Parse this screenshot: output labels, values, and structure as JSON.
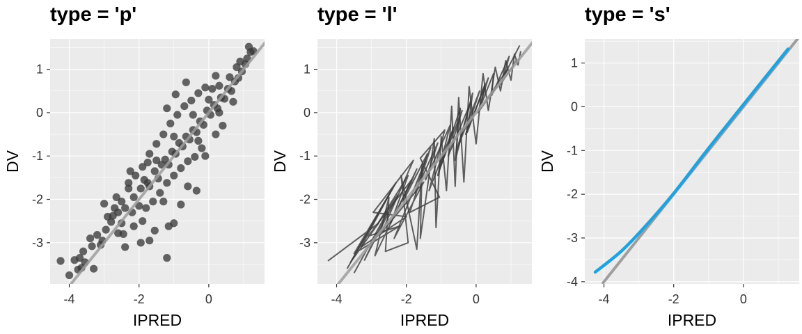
{
  "colors": {
    "panel_bg": "#EBEBEB",
    "grid": "#FFFFFF",
    "points": "#3A3A3A",
    "identity_line": "#9E9E9E",
    "smooth_line": "#1FA3E0",
    "tick_marks": "#333333"
  },
  "chart_data": [
    {
      "type": "scatter",
      "title": "type = 'p'",
      "xlabel": "IPRED",
      "ylabel": "DV",
      "xlim": [
        -4.55,
        1.6
      ],
      "ylim": [
        -3.95,
        1.7
      ],
      "x_ticks": [
        -4,
        -2,
        0
      ],
      "x_tick_labels": [
        "-4",
        "-2",
        "0"
      ],
      "y_ticks": [
        -3,
        -2,
        -1,
        0,
        1
      ],
      "y_tick_labels": [
        "-3",
        "-2",
        "-1",
        "0",
        "1"
      ],
      "grid": true,
      "identity_line": true,
      "series": [
        {
          "points": [
            [
              -4.25,
              -3.42
            ],
            [
              -3.65,
              -3.58
            ],
            [
              -3.55,
              -3.45
            ],
            [
              -3.7,
              -3.35
            ],
            [
              -3.6,
              -3.2
            ],
            [
              -3.35,
              -3.08
            ],
            [
              -3.4,
              -2.9
            ],
            [
              -3.2,
              -2.82
            ],
            [
              -3.05,
              -2.95
            ],
            [
              -2.95,
              -2.7
            ],
            [
              -2.8,
              -2.52
            ],
            [
              -2.75,
              -2.38
            ],
            [
              -2.6,
              -2.3
            ],
            [
              -2.5,
              -2.55
            ],
            [
              -2.5,
              -2.05
            ],
            [
              -2.4,
              -2.2
            ],
            [
              -2.3,
              -1.62
            ],
            [
              -2.15,
              -1.95
            ],
            [
              -1.95,
              -1.75
            ],
            [
              -2.0,
              -2.15
            ],
            [
              -1.85,
              -1.55
            ],
            [
              -1.75,
              -1.62
            ],
            [
              -1.7,
              -1.7
            ],
            [
              -1.55,
              -1.35
            ],
            [
              -1.45,
              -1.52
            ],
            [
              -1.35,
              -1.2
            ],
            [
              -1.25,
              -1.08
            ],
            [
              -1.15,
              -1.2
            ],
            [
              -1.05,
              -0.9
            ],
            [
              -0.95,
              -0.95
            ],
            [
              -0.85,
              -0.7
            ],
            [
              -0.75,
              -0.78
            ],
            [
              -0.65,
              -0.55
            ],
            [
              -0.55,
              -0.62
            ],
            [
              -0.45,
              -0.4
            ],
            [
              -0.35,
              -0.45
            ],
            [
              -0.25,
              -0.2
            ],
            [
              -0.15,
              -0.28
            ],
            [
              -0.05,
              0.05
            ],
            [
              0.05,
              -0.05
            ],
            [
              0.15,
              0.18
            ],
            [
              0.25,
              0.1
            ],
            [
              0.35,
              0.35
            ],
            [
              0.45,
              0.32
            ],
            [
              0.55,
              0.55
            ],
            [
              0.65,
              0.5
            ],
            [
              0.75,
              0.72
            ],
            [
              0.85,
              0.8
            ],
            [
              0.95,
              0.95
            ],
            [
              1.05,
              1.12
            ],
            [
              1.1,
              1.25
            ],
            [
              1.2,
              1.4
            ],
            [
              1.15,
              1.52
            ],
            [
              1.28,
              1.42
            ],
            [
              0.9,
              1.18
            ],
            [
              0.8,
              1.05
            ],
            [
              0.6,
              0.82
            ],
            [
              0.3,
              0.62
            ],
            [
              0.1,
              0.55
            ],
            [
              -0.1,
              0.58
            ],
            [
              -0.3,
              0.45
            ],
            [
              -0.5,
              0.28
            ],
            [
              -0.7,
              0.15
            ],
            [
              -0.9,
              -0.05
            ],
            [
              -1.1,
              -0.25
            ],
            [
              -1.3,
              -0.5
            ],
            [
              -1.5,
              -0.72
            ],
            [
              -1.7,
              -0.95
            ],
            [
              -1.9,
              -1.25
            ],
            [
              -2.1,
              -1.45
            ],
            [
              -2.3,
              -1.75
            ],
            [
              -0.4,
              -1.02
            ],
            [
              -0.2,
              -0.82
            ],
            [
              0.2,
              -0.5
            ],
            [
              0.4,
              -0.3
            ],
            [
              -1.6,
              -2.05
            ],
            [
              -1.4,
              -1.85
            ],
            [
              -1.2,
              -1.62
            ],
            [
              -1.0,
              -1.45
            ],
            [
              -0.8,
              -1.28
            ],
            [
              -0.6,
              -1.12
            ],
            [
              -2.9,
              -2.4
            ],
            [
              -2.7,
              -2.2
            ],
            [
              -2.2,
              -2.3
            ],
            [
              -1.8,
              -2.2
            ],
            [
              -2.45,
              -2.8
            ],
            [
              -1.95,
              -3.0
            ],
            [
              -1.7,
              -2.95
            ],
            [
              -1.55,
              -2.72
            ],
            [
              -1.15,
              -2.62
            ],
            [
              -1.0,
              -2.55
            ],
            [
              -0.8,
              -2.12
            ],
            [
              -0.6,
              -1.7
            ],
            [
              -0.35,
              -1.8
            ],
            [
              -1.2,
              -3.35
            ],
            [
              -2.4,
              -3.1
            ],
            [
              -1.3,
              -2.05
            ],
            [
              -3.1,
              -3.05
            ],
            [
              -3.75,
              -3.62
            ],
            [
              -3.85,
              -3.4
            ],
            [
              -4.0,
              -3.75
            ],
            [
              -0.65,
              0.7
            ],
            [
              -0.95,
              0.42
            ],
            [
              -1.2,
              0.1
            ],
            [
              -0.3,
              -0.65
            ],
            [
              0.0,
              0.3
            ],
            [
              0.2,
              0.85
            ],
            [
              -2.15,
              -2.62
            ],
            [
              -1.9,
              -2.5
            ],
            [
              -2.6,
              -2.78
            ],
            [
              -3.3,
              -3.6
            ],
            [
              -1.5,
              -1.1
            ],
            [
              -1.0,
              -0.55
            ],
            [
              -0.45,
              -0.05
            ],
            [
              0.3,
              0.0
            ],
            [
              0.7,
              0.25
            ],
            [
              -2.65,
              -1.95
            ],
            [
              -2.25,
              -1.35
            ],
            [
              -1.75,
              -1.15
            ],
            [
              -3.0,
              -2.1
            ],
            [
              -0.1,
              -1.0
            ]
          ]
        }
      ]
    },
    {
      "type": "line",
      "title": "type = 'l'",
      "xlabel": "IPRED",
      "ylabel": "DV",
      "xlim": [
        -4.55,
        1.6
      ],
      "ylim": [
        -3.95,
        1.7
      ],
      "x_ticks": [
        -4,
        -2,
        0
      ],
      "x_tick_labels": [
        "-4",
        "-2",
        "0"
      ],
      "y_ticks": [
        -3,
        -2,
        -1,
        0,
        1
      ],
      "y_tick_labels": [
        "-3",
        "-2",
        "-1",
        "0",
        "1"
      ],
      "grid": true,
      "identity_line": true,
      "series": [
        {
          "points": [
            [
              -4.25,
              -3.42
            ],
            [
              -2.8,
              -2.55
            ],
            [
              -3.6,
              -3.45
            ],
            [
              -2.3,
              -1.62
            ],
            [
              -3.5,
              -3.25
            ],
            [
              -2.2,
              -2.62
            ],
            [
              -3.1,
              -2.85
            ],
            [
              -1.85,
              -1.55
            ],
            [
              -2.9,
              -3.3
            ],
            [
              -2.5,
              -1.95
            ],
            [
              -2.6,
              -3.2
            ],
            [
              -1.95,
              -3.0
            ],
            [
              -2.15,
              -1.45
            ],
            [
              -1.7,
              -3.15
            ],
            [
              -1.55,
              -1.2
            ],
            [
              -1.6,
              -2.9
            ],
            [
              -1.2,
              -0.6
            ],
            [
              -1.15,
              -2.65
            ],
            [
              -1.0,
              -0.55
            ],
            [
              -0.85,
              -1.8
            ],
            [
              -0.7,
              0.15
            ],
            [
              -0.6,
              -1.7
            ],
            [
              -0.5,
              0.35
            ],
            [
              -0.35,
              -1.6
            ],
            [
              -0.2,
              0.6
            ],
            [
              0.0,
              -0.72
            ],
            [
              0.2,
              0.9
            ],
            [
              0.35,
              0.05
            ],
            [
              0.55,
              1.05
            ],
            [
              0.7,
              0.5
            ],
            [
              0.85,
              1.2
            ],
            [
              1.0,
              0.75
            ],
            [
              1.1,
              1.35
            ],
            [
              1.2,
              1.1
            ],
            [
              1.28,
              1.42
            ]
          ]
        },
        {
          "points": [
            [
              -3.7,
              -3.6
            ],
            [
              -2.4,
              -1.75
            ],
            [
              -3.3,
              -3.1
            ],
            [
              -2.0,
              -2.4
            ],
            [
              -2.95,
              -2.3
            ],
            [
              -1.8,
              -1.1
            ],
            [
              -2.7,
              -2.75
            ],
            [
              -1.5,
              -1.6
            ],
            [
              -2.35,
              -2.9
            ],
            [
              -1.3,
              -0.8
            ],
            [
              -1.9,
              -2.3
            ],
            [
              -1.05,
              -1.95
            ],
            [
              -1.6,
              -1.05
            ],
            [
              -0.9,
              -0.4
            ],
            [
              -1.35,
              -1.8
            ],
            [
              -0.65,
              -0.35
            ],
            [
              -1.05,
              -1.3
            ],
            [
              -0.4,
              0.05
            ],
            [
              -0.8,
              -1.0
            ],
            [
              -0.15,
              0.25
            ],
            [
              -0.55,
              -0.85
            ],
            [
              0.1,
              0.5
            ],
            [
              -0.3,
              -0.5
            ],
            [
              0.35,
              0.8
            ],
            [
              0.05,
              0.0
            ],
            [
              0.6,
              0.6
            ],
            [
              0.3,
              0.3
            ],
            [
              0.9,
              1.0
            ],
            [
              0.7,
              0.65
            ],
            [
              1.15,
              1.2
            ]
          ]
        },
        {
          "points": [
            [
              -3.5,
              -3.7
            ],
            [
              -2.55,
              -2.3
            ],
            [
              -3.2,
              -3.4
            ],
            [
              -2.25,
              -1.9
            ],
            [
              -2.85,
              -2.6
            ],
            [
              -1.95,
              -1.45
            ],
            [
              -2.45,
              -2.55
            ],
            [
              -1.7,
              -1.3
            ],
            [
              -2.1,
              -2.05
            ],
            [
              -1.4,
              -0.95
            ],
            [
              -1.75,
              -1.85
            ],
            [
              -1.1,
              -0.7
            ],
            [
              -1.45,
              -1.55
            ],
            [
              -0.75,
              -0.3
            ],
            [
              -1.1,
              -1.45
            ],
            [
              -0.45,
              0.1
            ],
            [
              -0.6,
              -1.1
            ],
            [
              -0.1,
              0.45
            ],
            [
              -0.25,
              -0.45
            ],
            [
              0.25,
              0.65
            ],
            [
              0.15,
              0.2
            ],
            [
              0.5,
              0.9
            ],
            [
              0.45,
              0.4
            ],
            [
              0.95,
              1.3
            ],
            [
              0.8,
              0.85
            ],
            [
              1.25,
              1.55
            ]
          ]
        }
      ]
    },
    {
      "type": "line",
      "title": "type = 's'",
      "xlabel": "IPRED",
      "ylabel": "DV",
      "xlim": [
        -4.55,
        1.6
      ],
      "ylim": [
        -4.05,
        1.55
      ],
      "x_ticks": [
        -4,
        -2,
        0
      ],
      "x_tick_labels": [
        "-4",
        "-2",
        "0"
      ],
      "y_ticks": [
        -4,
        -3,
        -2,
        -1,
        0,
        1
      ],
      "y_tick_labels": [
        "-4",
        "-3",
        "-2",
        "-1",
        "0",
        "1"
      ],
      "grid": true,
      "identity_line": true,
      "series": [
        {
          "points": [
            [
              -4.25,
              -3.78
            ],
            [
              -3.5,
              -3.3
            ],
            [
              -2.8,
              -2.72
            ],
            [
              -2.0,
              -1.98
            ],
            [
              -1.0,
              -0.95
            ],
            [
              0.0,
              0.05
            ],
            [
              1.28,
              1.32
            ]
          ]
        }
      ]
    }
  ]
}
